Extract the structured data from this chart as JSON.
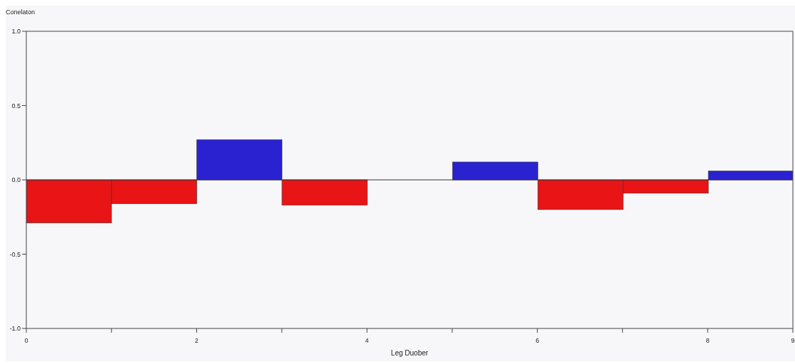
{
  "chart_data": {
    "type": "histogram",
    "xlabel": "Leg Duober",
    "ylabel": "Conelaton",
    "bins": [
      0,
      1,
      2,
      3,
      4,
      5,
      6,
      7,
      8,
      9
    ],
    "values": [
      -0.29,
      -0.16,
      0.27,
      -0.17,
      0,
      0.12,
      -0.2,
      -0.09,
      0.06
    ],
    "colors": [
      "#e81416",
      "#e81416",
      "#2a22d0",
      "#e81416",
      "#e81416",
      "#2a22d0",
      "#e81416",
      "#e81416",
      "#2a22d0"
    ],
    "xlim": [
      0,
      9
    ],
    "xticks": [
      0,
      {
        "value": 1,
        "label": null
      },
      2,
      {
        "value": 3,
        "label": null
      },
      4,
      {
        "value": 5,
        "label": null
      },
      6,
      {
        "value": 7,
        "label": null
      },
      8,
      9
    ],
    "ylim": [
      -1,
      1
    ],
    "yticks": [
      {
        "value": 1,
        "label": "1.0"
      },
      0.5,
      {
        "value": 0,
        "label": "0.0"
      },
      -0.5,
      {
        "value": -1,
        "label": "-1.0"
      }
    ],
    "ref_lines": [
      {
        "axis": "y",
        "value": 0,
        "color": "#333333"
      }
    ],
    "grid": false
  }
}
